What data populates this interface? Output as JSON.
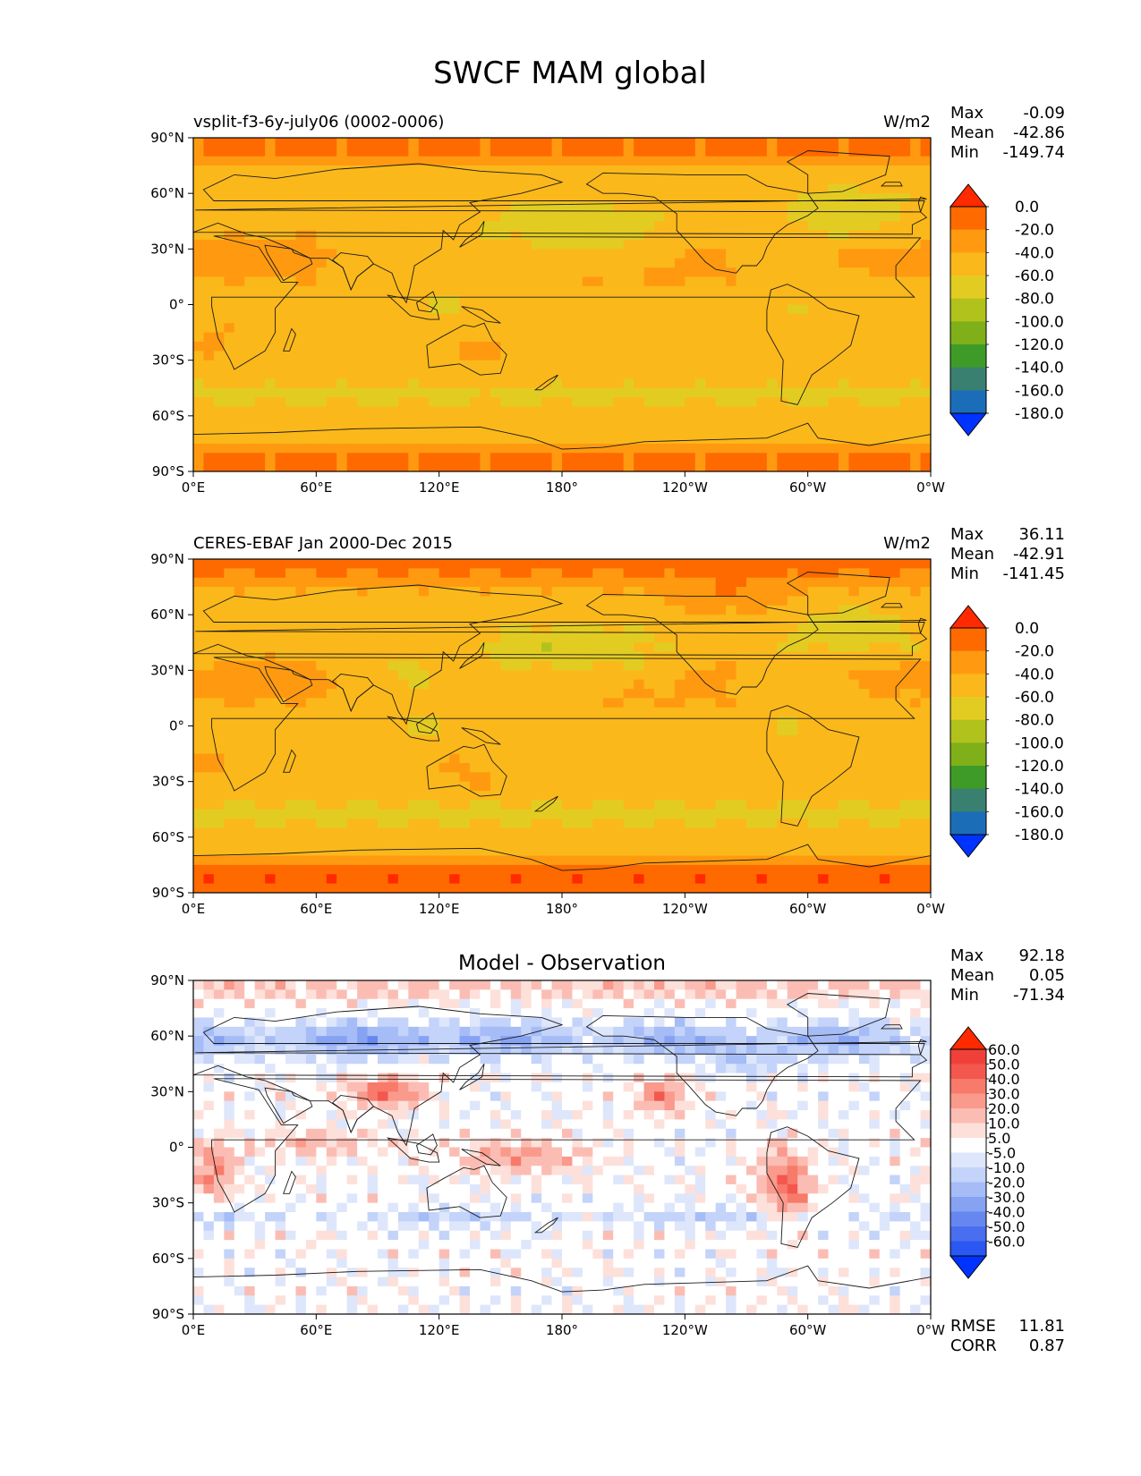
{
  "figure": {
    "title": "SWCF MAM global"
  },
  "chart_data": [
    {
      "type": "heatmap",
      "left_title": "vsplit-f3-6y-july06 (0002-0006)",
      "center_title": "",
      "units": "W/m2",
      "stats": {
        "max_label": "Max",
        "max": "-0.09",
        "mean_label": "Mean",
        "mean": "-42.86",
        "min_label": "Min",
        "min": "-149.74"
      },
      "x_ticks": [
        "0°E",
        "60°E",
        "120°E",
        "180°",
        "120°W",
        "60°W",
        "0°W"
      ],
      "y_ticks": [
        "90°N",
        "60°N",
        "30°N",
        "0°",
        "30°S",
        "60°S",
        "90°S"
      ],
      "colorbar": {
        "levels": [
          "0.0",
          "-20.0",
          "-40.0",
          "-60.0",
          "-80.0",
          "-100.0",
          "-120.0",
          "-140.0",
          "-160.0",
          "-180.0"
        ],
        "colors": [
          "#ff2a00",
          "#ff6a00",
          "#ff9a10",
          "#fbb81a",
          "#e3cc22",
          "#b2c21c",
          "#7fb01a",
          "#3f9b28",
          "#3a8070",
          "#1b6db8",
          "#0033ff"
        ]
      }
    },
    {
      "type": "heatmap",
      "left_title": "CERES-EBAF Jan 2000-Dec 2015",
      "center_title": "",
      "units": "W/m2",
      "stats": {
        "max_label": "Max",
        "max": "36.11",
        "mean_label": "Mean",
        "mean": "-42.91",
        "min_label": "Min",
        "min": "-141.45"
      },
      "x_ticks": [
        "0°E",
        "60°E",
        "120°E",
        "180°",
        "120°W",
        "60°W",
        "0°W"
      ],
      "y_ticks": [
        "90°N",
        "60°N",
        "30°N",
        "0°",
        "30°S",
        "60°S",
        "90°S"
      ],
      "colorbar": {
        "levels": [
          "0.0",
          "-20.0",
          "-40.0",
          "-60.0",
          "-80.0",
          "-100.0",
          "-120.0",
          "-140.0",
          "-160.0",
          "-180.0"
        ],
        "colors": [
          "#ff2a00",
          "#ff6a00",
          "#ff9a10",
          "#fbb81a",
          "#e3cc22",
          "#b2c21c",
          "#7fb01a",
          "#3f9b28",
          "#3a8070",
          "#1b6db8",
          "#0033ff"
        ]
      }
    },
    {
      "type": "heatmap",
      "left_title": "",
      "center_title": "Model - Observation",
      "units": "",
      "stats": {
        "max_label": "Max",
        "max": "92.18",
        "mean_label": "Mean",
        "mean": "0.05",
        "min_label": "Min",
        "min": "-71.34"
      },
      "extra_stats": {
        "rmse_label": "RMSE",
        "rmse": "11.81",
        "corr_label": "CORR",
        "corr": "0.87"
      },
      "x_ticks": [
        "0°E",
        "60°E",
        "120°E",
        "180°",
        "120°W",
        "60°W",
        "0°W"
      ],
      "y_ticks": [
        "90°N",
        "60°N",
        "30°N",
        "0°",
        "30°S",
        "60°S",
        "90°S"
      ],
      "colorbar": {
        "levels": [
          "60.0",
          "50.0",
          "40.0",
          "30.0",
          "20.0",
          "10.0",
          "5.0",
          "-5.0",
          "-10.0",
          "-20.0",
          "-30.0",
          "-40.0",
          "-50.0",
          "-60.0"
        ],
        "colors": [
          "#ff2a00",
          "#f0403a",
          "#f4574d",
          "#f77a6a",
          "#f99a8c",
          "#fbbdb3",
          "#fde0da",
          "#ffffff",
          "#dde6fb",
          "#c3d3fa",
          "#a5bcf6",
          "#86a2f3",
          "#6687ef",
          "#4a6ef0",
          "#2b57f2",
          "#0033ff"
        ]
      }
    }
  ]
}
